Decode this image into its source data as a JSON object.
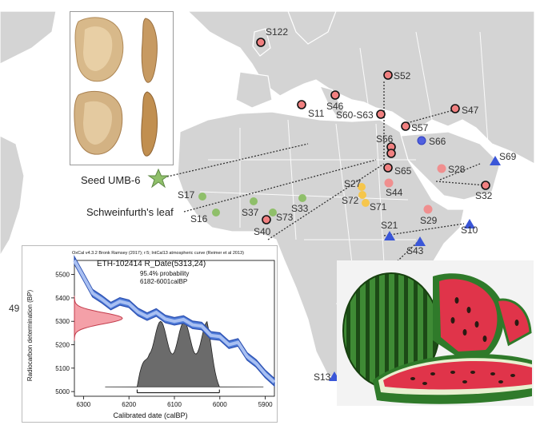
{
  "map": {
    "sites_red": [
      "S122",
      "S52",
      "S46",
      "S11",
      "S60-S63",
      "S47",
      "S57",
      "S56",
      "S65",
      "S32",
      "S40"
    ],
    "sites_blue_circle": [
      "S66"
    ],
    "sites_pink": [
      "S28",
      "S44",
      "S29"
    ],
    "sites_yellow": [
      "S27",
      "S72",
      "S71"
    ],
    "sites_green": [
      "S17",
      "S16",
      "S37",
      "S73",
      "S33"
    ],
    "sites_blue_triangle": [
      "S69",
      "S10",
      "S21",
      "S43",
      "S13"
    ],
    "edge_label": "49",
    "seed_label": "Seed UMB-6",
    "leaf_label": "Schweinfurth's leaf",
    "colors": {
      "land": "#d4d4d4",
      "border": "#ffffff",
      "red": "#f08080",
      "green": "#8fbf6a",
      "yellow": "#f6c64c",
      "pink": "#f08f8f",
      "blue": "#4a62d8",
      "star": "#8fbf6a"
    }
  },
  "chart": {
    "header": "OxCal v4.3.2 Bronk Ramsey (2017); r:5; IntCal13 atmospheric curve (Reimer et al 2013)",
    "title": "ETH-102414 R_Date(5313,24)",
    "probability": "95.4% probability",
    "range": "6182-6001calBP",
    "xlabel": "Calibrated date (calBP)",
    "ylabel": "Radiocarbon determination (BP)",
    "x_ticks": [
      "6300",
      "6200",
      "6100",
      "6000",
      "5900"
    ],
    "y_ticks": [
      "5500",
      "5400",
      "5300",
      "5200",
      "5100",
      "5000"
    ]
  },
  "chart_data": {
    "type": "line",
    "title": "ETH-102414 R_Date(5313,24)",
    "xlabel": "Calibrated date (calBP)",
    "ylabel": "Radiocarbon determination (BP)",
    "xlim": [
      6320,
      5880
    ],
    "ylim": [
      4980,
      5560
    ],
    "calibration_curve": {
      "x": [
        6320,
        6300,
        6280,
        6260,
        6240,
        6220,
        6200,
        6180,
        6160,
        6140,
        6120,
        6100,
        6080,
        6060,
        6040,
        6020,
        6000,
        5980,
        5960,
        5940,
        5920,
        5900,
        5880
      ],
      "y": [
        5560,
        5490,
        5420,
        5395,
        5365,
        5385,
        5375,
        5340,
        5320,
        5338,
        5310,
        5300,
        5308,
        5285,
        5280,
        5240,
        5235,
        5200,
        5210,
        5150,
        5120,
        5075,
        5040
      ]
    },
    "radiocarbon_date": {
      "mean": 5313,
      "sd": 24
    },
    "calibrated_range": [
      6182,
      6001
    ]
  },
  "melon": {
    "colors": {
      "rind": "#2f7a2a",
      "stripe": "#1d4a17",
      "flesh": "#e0344a",
      "seed": "#2a1a12"
    }
  }
}
